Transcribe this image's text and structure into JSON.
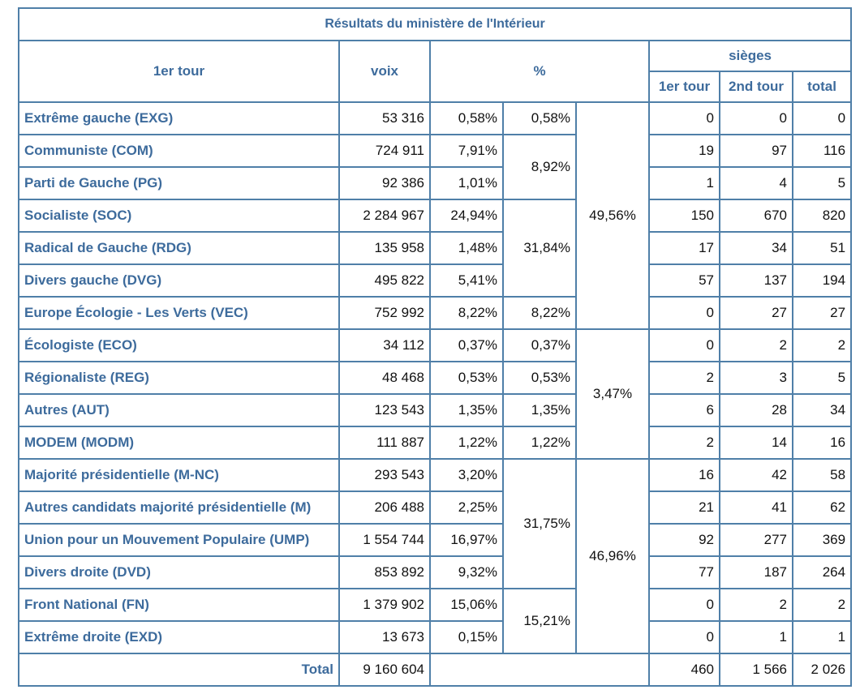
{
  "table": {
    "caption": "Résultats du ministère de l'Intérieur",
    "headers": {
      "first_round": "1er tour",
      "votes": "voix",
      "percent": "%",
      "seats": "sièges",
      "seats_first": "1er tour",
      "seats_second": "2nd tour",
      "seats_total": "total"
    },
    "rows": [
      {
        "party": "Extrême gauche (EXG)",
        "votes": "53 316",
        "pct": "0,58%",
        "s1": "0",
        "s2": "0",
        "total": "0"
      },
      {
        "party": "Communiste (COM)",
        "votes": "724 911",
        "pct": "7,91%",
        "s1": "19",
        "s2": "97",
        "total": "116"
      },
      {
        "party": "Parti de Gauche (PG)",
        "votes": "92 386",
        "pct": "1,01%",
        "s1": "1",
        "s2": "4",
        "total": "5"
      },
      {
        "party": "Socialiste (SOC)",
        "votes": "2 284 967",
        "pct": "24,94%",
        "s1": "150",
        "s2": "670",
        "total": "820"
      },
      {
        "party": "Radical de Gauche (RDG)",
        "votes": "135 958",
        "pct": "1,48%",
        "s1": "17",
        "s2": "34",
        "total": "51"
      },
      {
        "party": "Divers gauche (DVG)",
        "votes": "495 822",
        "pct": "5,41%",
        "s1": "57",
        "s2": "137",
        "total": "194"
      },
      {
        "party": "Europe Écologie - Les Verts (VEC)",
        "votes": "752 992",
        "pct": "8,22%",
        "s1": "0",
        "s2": "27",
        "total": "27"
      },
      {
        "party": "Écologiste (ECO)",
        "votes": "34 112",
        "pct": "0,37%",
        "s1": "0",
        "s2": "2",
        "total": "2"
      },
      {
        "party": "Régionaliste (REG)",
        "votes": "48 468",
        "pct": "0,53%",
        "s1": "2",
        "s2": "3",
        "total": "5"
      },
      {
        "party": "Autres (AUT)",
        "votes": "123 543",
        "pct": "1,35%",
        "s1": "6",
        "s2": "28",
        "total": "34"
      },
      {
        "party": "MODEM (MODM)",
        "votes": "111 887",
        "pct": "1,22%",
        "s1": "2",
        "s2": "14",
        "total": "16"
      },
      {
        "party": "Majorité présidentielle (M-NC)",
        "votes": "293 543",
        "pct": "3,20%",
        "s1": "16",
        "s2": "42",
        "total": "58"
      },
      {
        "party": "Autres candidats majorité présidentielle (M)",
        "votes": "206 488",
        "pct": "2,25%",
        "s1": "21",
        "s2": "41",
        "total": "62"
      },
      {
        "party": "Union pour un Mouvement Populaire (UMP)",
        "votes": "1 554 744",
        "pct": "16,97%",
        "s1": "92",
        "s2": "277",
        "total": "369"
      },
      {
        "party": "Divers droite (DVD)",
        "votes": "853 892",
        "pct": "9,32%",
        "s1": "77",
        "s2": "187",
        "total": "264"
      },
      {
        "party": "Front National (FN)",
        "votes": "1 379 902",
        "pct": "15,06%",
        "s1": "0",
        "s2": "2",
        "total": "2"
      },
      {
        "party": "Extrême droite (EXD)",
        "votes": "13 673",
        "pct": "0,15%",
        "s1": "0",
        "s2": "1",
        "total": "1"
      }
    ],
    "subgroups": {
      "exg": "0,58%",
      "com_pg": "8,92%",
      "soc_rdg_dvg": "31,84%",
      "vec": "8,22%",
      "eco": "0,37%",
      "reg": "0,53%",
      "aut": "1,35%",
      "modm": "1,22%",
      "droite": "31,75%",
      "fn_exd": "15,21%"
    },
    "blocs": {
      "gauche": "49,56%",
      "centre_autres": "3,47%",
      "droite": "46,96%"
    },
    "total": {
      "label": "Total",
      "votes": "9 160 604",
      "s1": "460",
      "s2": "1 566",
      "total": "2 026"
    }
  }
}
